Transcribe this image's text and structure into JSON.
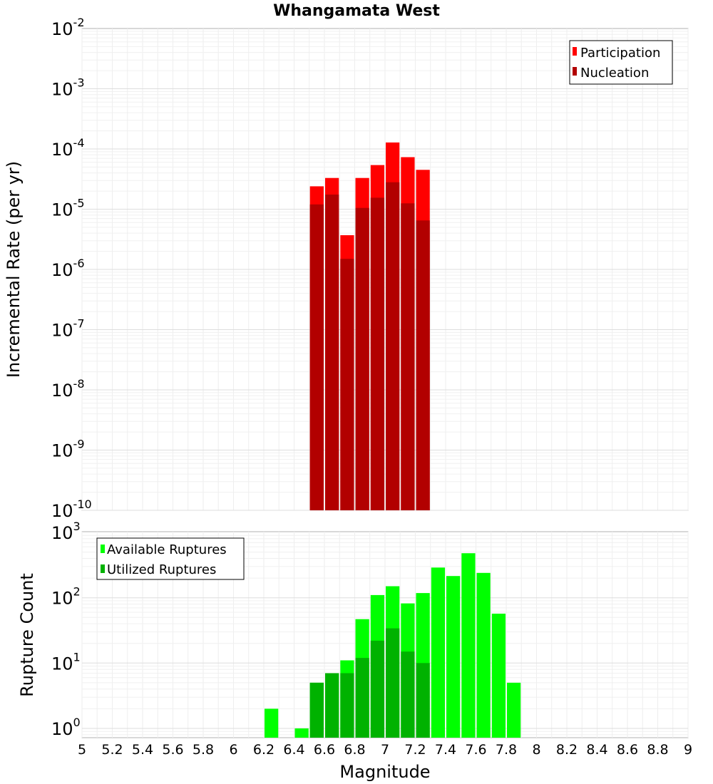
{
  "chart_data": [
    {
      "type": "bar",
      "title": "Whangamata West",
      "xlabel": "Magnitude",
      "ylabel": "Incremental Rate (per yr)",
      "yscale": "log",
      "xlim": [
        5,
        9
      ],
      "ylim_exponents": [
        -10,
        -2
      ],
      "legend_position": "top-right",
      "legend": [
        "Participation",
        "Nucleation"
      ],
      "ytick_exponents": [
        "-2",
        "-3",
        "-4",
        "-5",
        "-6",
        "-7",
        "-8",
        "-9",
        "-10"
      ],
      "series": [
        {
          "name": "Participation",
          "color": "#ff0000",
          "x": [
            6.55,
            6.65,
            6.75,
            6.85,
            6.95,
            7.05,
            7.15,
            7.25
          ],
          "values": [
            2.4e-05,
            3.3e-05,
            3.7e-06,
            3.3e-05,
            5.4e-05,
            0.000128,
            7.3e-05,
            4.5e-05
          ]
        },
        {
          "name": "Nucleation",
          "color": "#b20000",
          "x": [
            6.55,
            6.65,
            6.75,
            6.85,
            6.95,
            7.05,
            7.15,
            7.25
          ],
          "values": [
            1.2e-05,
            1.75e-05,
            1.5e-06,
            1.05e-05,
            1.55e-05,
            2.8e-05,
            1.25e-05,
            6.5e-06
          ]
        }
      ]
    },
    {
      "type": "bar",
      "xlabel": "Magnitude",
      "ylabel": "Rupture Count",
      "yscale": "log",
      "xlim": [
        5,
        9
      ],
      "legend_position": "top-left",
      "legend": [
        "Available Ruptures",
        "Utilized Ruptures"
      ],
      "ytick_exponents": [
        "3",
        "2",
        "1",
        "0"
      ],
      "xticks": [
        "5",
        "5.2",
        "5.4",
        "5.6",
        "5.8",
        "6",
        "6.2",
        "6.4",
        "6.6",
        "6.8",
        "7",
        "7.2",
        "7.4",
        "7.6",
        "7.8",
        "8",
        "8.2",
        "8.4",
        "8.6",
        "8.8",
        "9"
      ],
      "series": [
        {
          "name": "Available Ruptures",
          "color": "#00ff00",
          "x": [
            6.25,
            6.45,
            6.55,
            6.65,
            6.75,
            6.85,
            6.95,
            7.05,
            7.15,
            7.25,
            7.35,
            7.45,
            7.55,
            7.65,
            7.75,
            7.85
          ],
          "values": [
            2,
            1,
            5,
            7,
            11,
            47,
            110,
            150,
            82,
            118,
            290,
            215,
            480,
            240,
            57,
            5
          ]
        },
        {
          "name": "Utilized Ruptures",
          "color": "#00b200",
          "x": [
            6.55,
            6.65,
            6.75,
            6.85,
            6.95,
            7.05,
            7.15,
            7.25
          ],
          "values": [
            5,
            7,
            7,
            12,
            22,
            34,
            15,
            10
          ]
        }
      ]
    }
  ]
}
